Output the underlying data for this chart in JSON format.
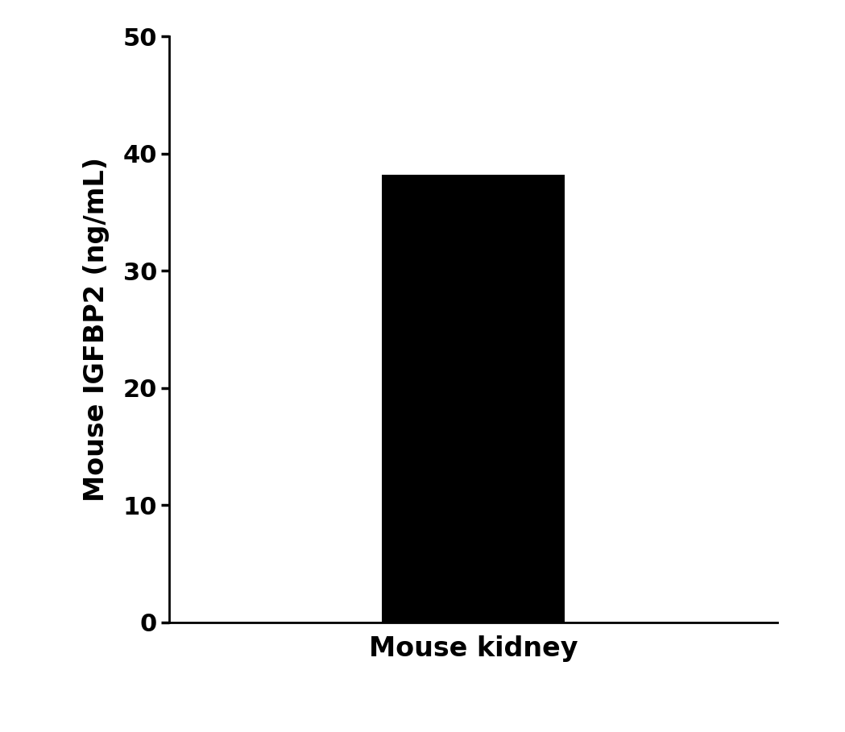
{
  "categories": [
    "Mouse kidney"
  ],
  "values": [
    38.18
  ],
  "bar_color": "#000000",
  "ylabel": "Mouse IGFBP2 (ng/mL)",
  "ylim": [
    0,
    50
  ],
  "yticks": [
    0,
    10,
    20,
    30,
    40,
    50
  ],
  "bar_width": 0.6,
  "ylabel_fontsize": 24,
  "xlabel_fontsize": 24,
  "tick_fontsize": 22,
  "background_color": "#ffffff",
  "spine_linewidth": 2.0,
  "figsize": [
    10.49,
    9.09
  ],
  "dpi": 100
}
